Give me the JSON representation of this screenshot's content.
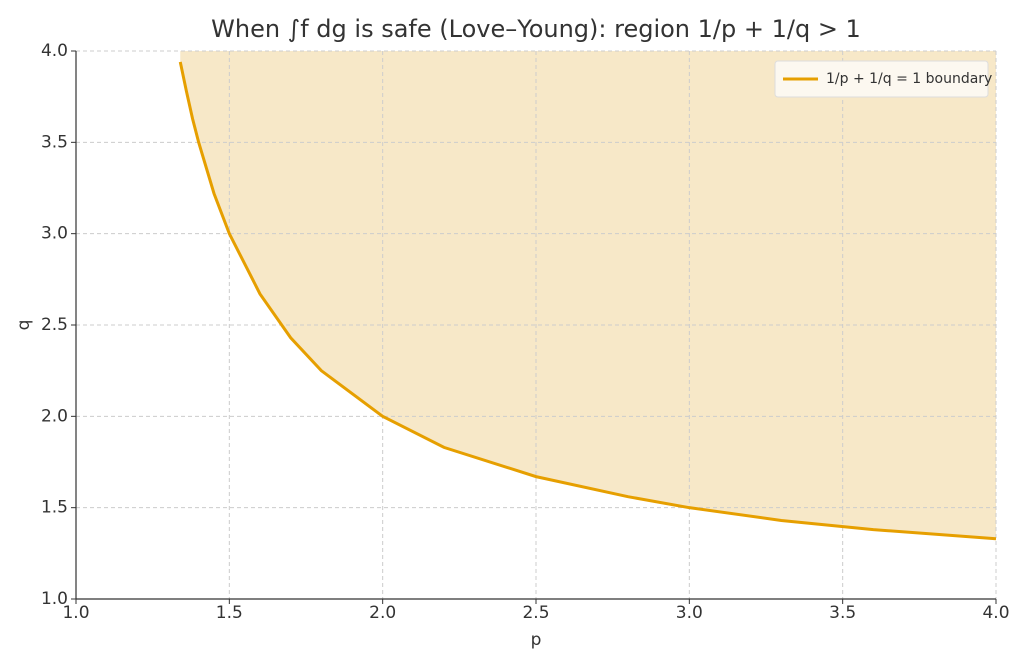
{
  "chart_data": {
    "type": "line",
    "title": "When ∫f dg is safe (Love–Young): region 1/p + 1/q > 1",
    "x_label": "p",
    "y_label": "q",
    "x": [
      1.34,
      1.36,
      1.38,
      1.4,
      1.45,
      1.5,
      1.6,
      1.7,
      1.8,
      2.0,
      2.2,
      2.5,
      2.8,
      3.0,
      3.3,
      3.6,
      4.0
    ],
    "series": [
      {
        "name": "1/p + 1/q = 1 boundary",
        "color": "#e69f00",
        "values": [
          3.94,
          3.78,
          3.63,
          3.5,
          3.22,
          3.0,
          2.67,
          2.43,
          2.25,
          2.0,
          1.83,
          1.67,
          1.56,
          1.5,
          1.43,
          1.38,
          1.33
        ]
      }
    ],
    "fill_color": "#f7e8c8",
    "xlim": [
      1.0,
      4.0
    ],
    "xticks": [
      {
        "value": 1.0,
        "label": "1.0"
      },
      {
        "value": 1.5,
        "label": "1.5"
      },
      {
        "value": 2.0,
        "label": "2.0"
      },
      {
        "value": 2.5,
        "label": "2.5"
      },
      {
        "value": 3.0,
        "label": "3.0"
      },
      {
        "value": 3.5,
        "label": "3.5"
      },
      {
        "value": 4.0,
        "label": "4.0"
      }
    ],
    "ylim": [
      1.0,
      4.0
    ],
    "yticks": [
      {
        "value": 1.0,
        "label": "1.0"
      },
      {
        "value": 1.5,
        "label": "1.5"
      },
      {
        "value": 2.0,
        "label": "2.0"
      },
      {
        "value": 2.5,
        "label": "2.5"
      },
      {
        "value": 3.0,
        "label": "3.0"
      },
      {
        "value": 3.5,
        "label": "3.5"
      },
      {
        "value": 4.0,
        "label": "4.0"
      }
    ],
    "grid": true,
    "legend": "upper right"
  }
}
